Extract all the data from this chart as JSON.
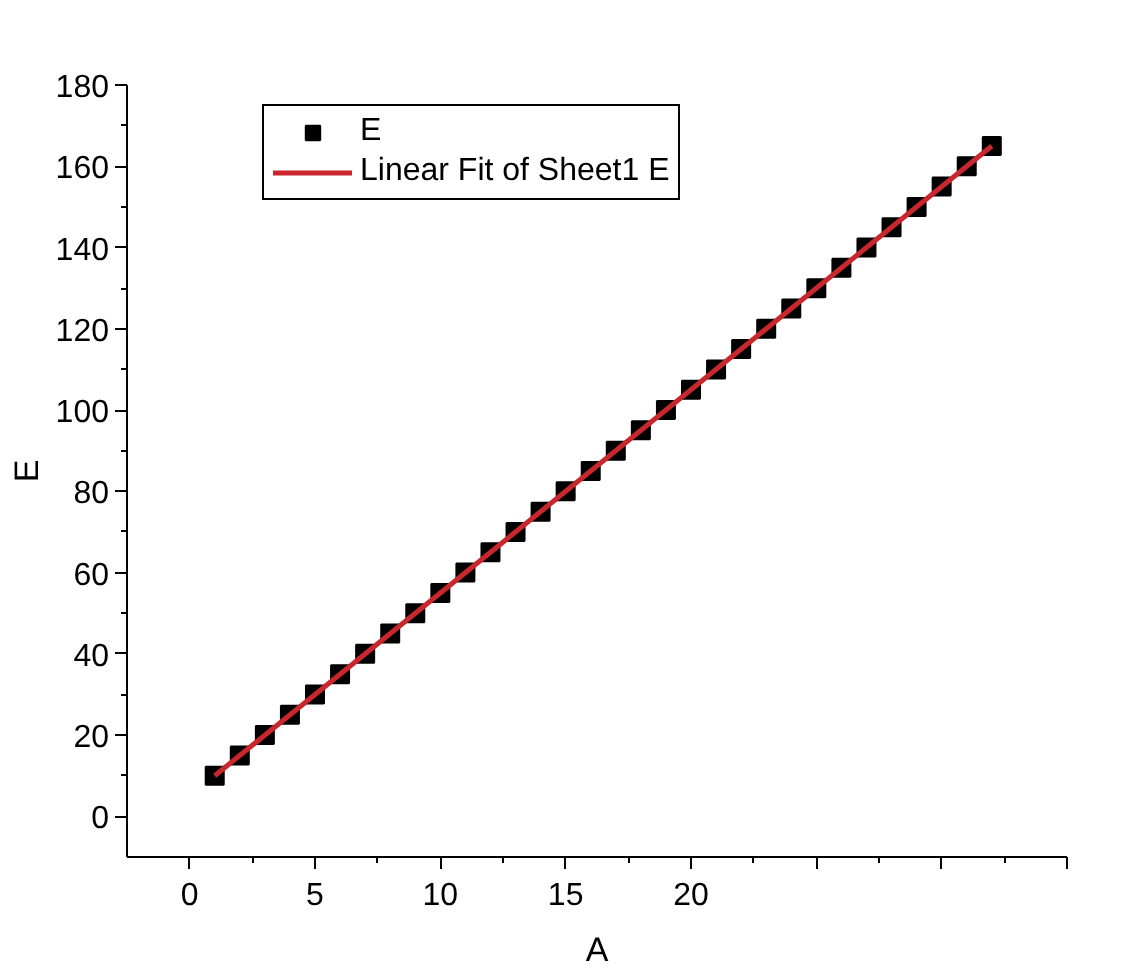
{
  "chart_data": {
    "type": "scatter",
    "xlabel": "A",
    "ylabel": "E",
    "x": [
      1,
      2,
      3,
      4,
      5,
      6,
      7,
      8,
      9,
      10,
      11,
      12,
      13,
      14,
      15,
      16,
      17,
      18,
      19,
      20,
      21,
      22,
      23,
      24,
      25,
      26,
      27,
      28,
      29,
      30,
      31,
      32
    ],
    "series": [
      {
        "name": "E",
        "color": "#000000",
        "marker": "square",
        "values": [
          10,
          15,
          20,
          25,
          30,
          35,
          40,
          45,
          50,
          55,
          60,
          65,
          70,
          75,
          80,
          85,
          90,
          95,
          100,
          105,
          110,
          115,
          120,
          125,
          130,
          135,
          140,
          145,
          150,
          155,
          160,
          165
        ]
      },
      {
        "name": "Linear Fit of Sheet1 E",
        "type": "line",
        "color": "#c8282d",
        "line_style": "solid",
        "x": [
          1,
          32
        ],
        "values": [
          10,
          165
        ]
      }
    ],
    "xlim": [
      -2.5,
      35
    ],
    "xticks": [
      0,
      5,
      10,
      15,
      20,
      {
        "value": 25,
        "label": null
      },
      {
        "value": 30,
        "label": null
      },
      {
        "value": 35,
        "label": null
      }
    ],
    "ylim": [
      -10,
      180
    ],
    "yticks": [
      0,
      20,
      40,
      60,
      80,
      100,
      120,
      140,
      160,
      180
    ],
    "legend": "top left"
  }
}
